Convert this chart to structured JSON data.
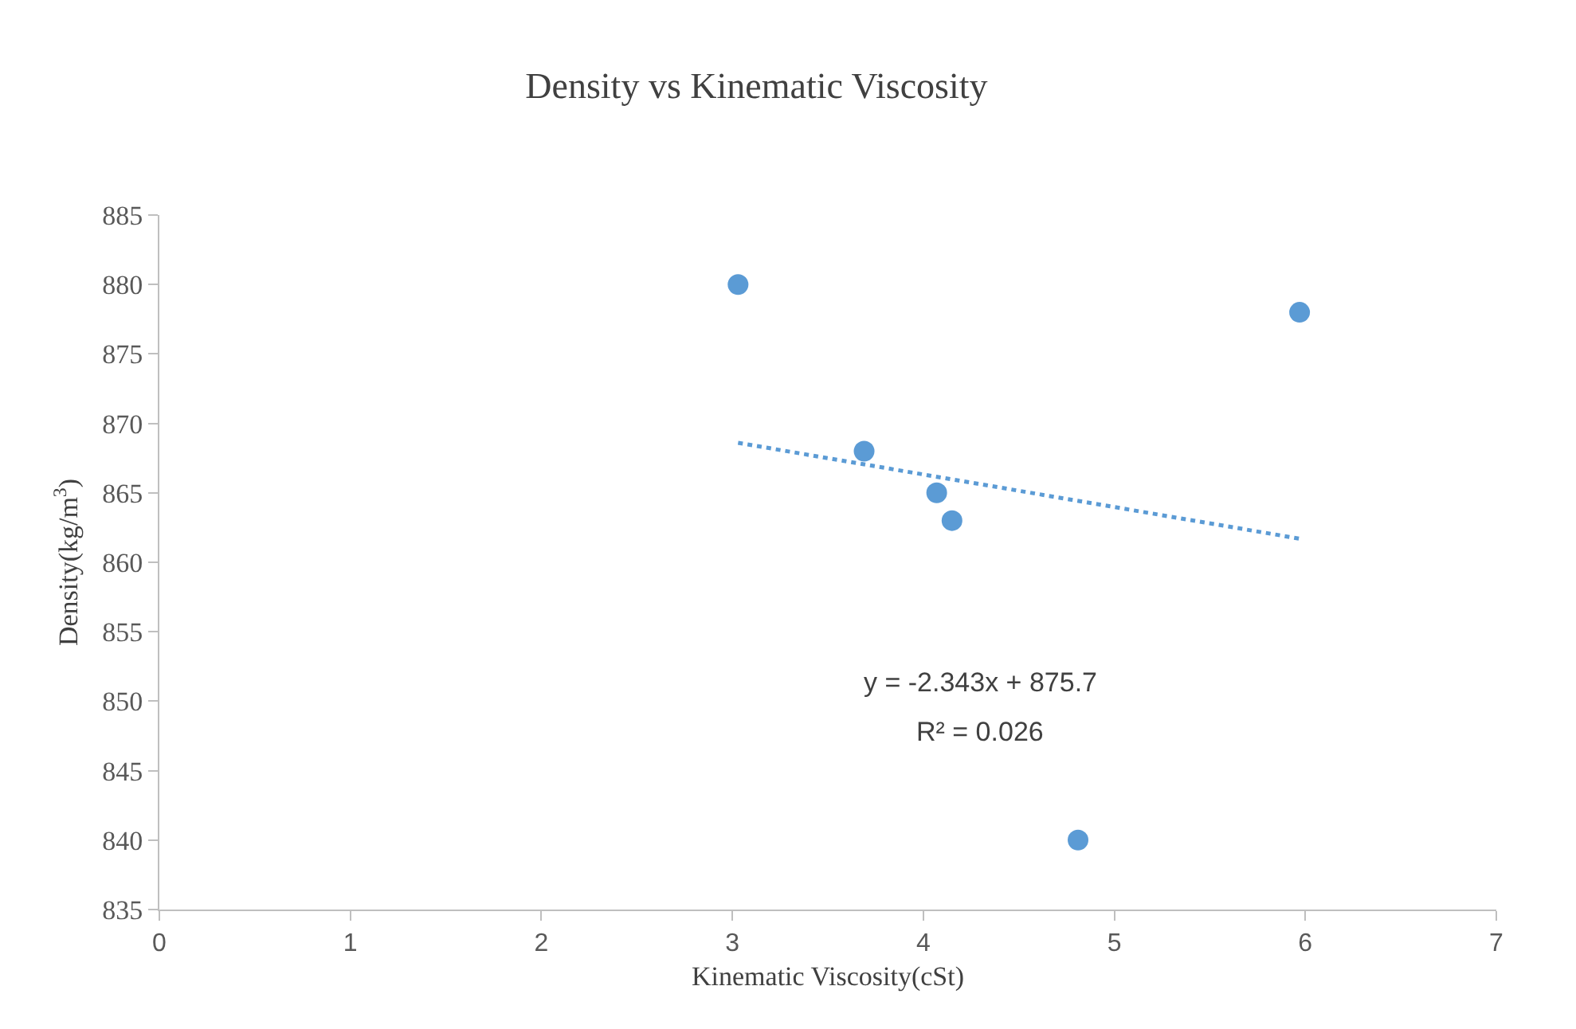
{
  "chart_data": {
    "type": "scatter",
    "title": "Density vs Kinematic Viscosity",
    "xlabel": "Kinematic Viscosity(cSt)",
    "ylabel": "Density(kg/m$^{3}$)",
    "series": [
      {
        "color": "#5b9bd5",
        "marker": "circle",
        "x": [
          3.03,
          3.69,
          4.07,
          4.15,
          4.81,
          5.97
        ],
        "values": [
          880,
          868,
          865,
          863,
          840,
          878
        ]
      },
      {
        "type": "line",
        "color": "#5b9bd5",
        "line_style": "dotted",
        "marker": "none",
        "x": [
          3.03,
          5.97
        ],
        "values": [
          868.6,
          861.7
        ]
      }
    ],
    "annotations": [
      "y = -2.343x + 875.7",
      "R² = 0.026"
    ],
    "xlim": [
      0,
      7
    ],
    "xticks": [
      0,
      1,
      2,
      3,
      4,
      5,
      6,
      7
    ],
    "ylim": [
      835,
      885
    ],
    "yticks": [
      835,
      840,
      845,
      850,
      855,
      860,
      865,
      870,
      875,
      880,
      885
    ],
    "legend": false
  }
}
